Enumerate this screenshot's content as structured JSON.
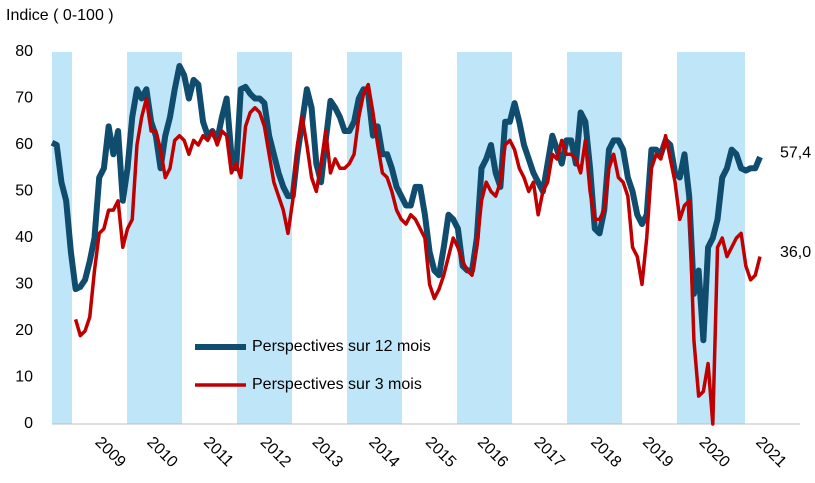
{
  "chart_data": {
    "type": "line",
    "y_axis_label": "Indice ( 0-100 )",
    "categories": [
      null,
      null,
      null,
      null,
      null,
      null,
      null,
      null,
      null,
      null,
      null,
      null,
      null,
      "2009",
      null,
      null,
      null,
      null,
      null,
      null,
      null,
      null,
      null,
      null,
      "2010",
      null,
      null,
      null,
      null,
      null,
      null,
      null,
      null,
      null,
      null,
      null,
      "2011",
      null,
      null,
      null,
      null,
      null,
      null,
      null,
      null,
      null,
      null,
      null,
      "2012",
      null,
      null,
      null,
      null,
      null,
      null,
      null,
      null,
      null,
      null,
      "2013",
      null,
      null,
      null,
      null,
      null,
      null,
      null,
      null,
      null,
      null,
      null,
      "2014",
      null,
      null,
      null,
      null,
      null,
      null,
      null,
      null,
      null,
      null,
      null,
      "2015",
      null,
      null,
      null,
      null,
      null,
      null,
      null,
      null,
      null,
      null,
      "2016",
      null,
      null,
      null,
      null,
      null,
      null,
      null,
      null,
      null,
      null,
      null,
      "2017",
      null,
      null,
      null,
      null,
      null,
      null,
      null,
      null,
      null,
      null,
      null,
      "2018",
      null,
      null,
      null,
      null,
      null,
      null,
      null,
      null,
      null,
      null,
      "2019",
      null,
      null,
      null,
      null,
      null,
      null,
      null,
      null,
      null,
      null,
      null,
      "2020",
      null,
      null,
      null,
      null,
      null,
      null,
      null,
      null,
      null,
      null,
      null,
      "2021"
    ],
    "series": [
      {
        "name": "Perspectives sur 12 mois",
        "color": "#0f4c6e",
        "width": 6,
        "values": [
          60.5,
          60,
          52,
          48,
          37,
          29,
          29.5,
          31,
          35,
          40,
          53,
          55,
          64,
          58,
          63,
          48,
          55,
          66,
          72,
          70,
          72,
          65,
          62,
          55,
          62,
          66,
          72,
          77,
          75,
          70,
          74,
          73,
          65,
          62,
          63,
          61,
          66,
          70,
          58,
          55,
          72,
          72.5,
          71,
          70,
          70,
          69,
          62,
          58,
          54,
          51,
          49,
          49,
          58,
          65,
          72,
          68,
          56,
          52,
          61,
          69.5,
          68,
          66,
          63,
          63,
          65,
          70,
          72,
          71,
          62,
          64,
          58,
          58,
          55,
          51,
          49,
          47,
          47,
          51,
          51,
          45,
          37,
          33,
          32,
          38,
          45,
          44,
          42,
          34,
          33,
          33,
          40,
          55,
          57,
          60,
          54,
          51,
          65,
          65,
          69,
          65,
          60,
          57,
          54,
          52,
          50,
          56,
          62,
          59,
          56,
          61,
          61,
          56,
          67,
          65,
          55,
          42,
          41,
          46,
          59,
          61,
          61,
          59,
          53,
          50,
          45,
          43,
          45,
          59,
          59,
          58,
          61,
          60,
          54,
          53,
          58,
          49,
          28,
          33,
          18,
          38,
          40,
          44,
          53,
          55,
          59,
          58,
          55,
          54.5,
          55,
          55,
          57.4,
          null,
          null,
          null
        ],
        "value_labels": [
          null,
          null,
          null,
          null,
          null,
          null,
          null,
          null,
          null,
          null,
          null,
          null,
          null,
          null,
          null,
          null,
          null,
          null,
          null,
          null,
          null,
          null,
          null,
          null,
          null,
          null,
          null,
          null,
          null,
          null,
          null,
          null,
          null,
          null,
          null,
          null,
          null,
          null,
          null,
          null,
          null,
          null,
          null,
          null,
          null,
          null,
          null,
          null,
          null,
          null,
          null,
          null,
          null,
          null,
          null,
          null,
          null,
          null,
          null,
          null,
          null,
          null,
          null,
          null,
          null,
          null,
          null,
          null,
          null,
          null,
          null,
          null,
          null,
          null,
          null,
          null,
          null,
          null,
          null,
          null,
          null,
          null,
          null,
          null,
          null,
          null,
          null,
          null,
          null,
          null,
          null,
          null,
          null,
          null,
          null,
          null,
          null,
          null,
          null,
          null,
          null,
          null,
          null,
          null,
          null,
          null,
          null,
          null,
          null,
          null,
          null,
          null,
          null,
          null,
          null,
          null,
          null,
          null,
          null,
          null,
          null,
          null,
          null,
          null,
          null,
          null,
          null,
          null,
          null,
          null,
          null,
          null,
          null,
          null,
          null,
          null,
          null,
          null,
          null,
          null,
          null,
          null,
          null,
          null,
          null,
          null,
          null,
          null,
          null,
          null,
          "57,4",
          null,
          null,
          null
        ]
      },
      {
        "name": "Perspectives sur 3 mois",
        "color": "#c00000",
        "width": 3.5,
        "values": [
          null,
          null,
          null,
          null,
          null,
          22.5,
          19,
          20,
          23,
          33,
          41,
          42,
          46,
          46,
          48,
          38,
          42,
          44,
          60,
          66,
          70,
          63,
          63,
          59,
          53,
          55,
          61,
          62,
          61,
          58,
          61,
          60,
          62,
          61,
          63,
          60,
          63,
          62,
          54,
          56,
          53,
          64,
          67,
          68,
          67,
          64,
          58,
          52,
          49,
          46,
          41,
          48,
          60,
          66,
          60,
          53,
          50,
          56,
          63,
          54,
          57,
          55,
          55,
          56,
          58,
          66,
          71,
          73,
          67,
          60,
          54,
          53,
          50,
          46,
          44,
          43,
          45,
          44,
          42,
          40,
          30,
          27,
          29,
          32,
          36,
          40,
          38,
          35,
          33,
          32,
          38,
          48,
          52,
          50,
          49,
          52,
          60,
          61,
          59,
          55,
          53,
          50,
          52,
          45,
          50,
          52,
          58,
          57,
          61,
          58,
          58,
          57,
          54,
          61,
          50,
          44,
          44,
          46,
          55,
          58,
          53,
          52,
          49,
          38,
          36,
          30,
          40,
          55,
          58,
          57,
          62,
          57,
          52,
          44,
          47,
          48,
          18,
          6,
          7,
          13,
          0,
          38,
          40,
          36,
          38,
          40,
          41,
          34,
          31,
          32,
          36,
          null,
          null,
          null
        ],
        "value_labels": [
          null,
          null,
          null,
          null,
          null,
          null,
          null,
          null,
          null,
          null,
          null,
          null,
          null,
          null,
          null,
          null,
          null,
          null,
          null,
          null,
          null,
          null,
          null,
          null,
          null,
          null,
          null,
          null,
          null,
          null,
          null,
          null,
          null,
          null,
          null,
          null,
          null,
          null,
          null,
          null,
          null,
          null,
          null,
          null,
          null,
          null,
          null,
          null,
          null,
          null,
          null,
          null,
          null,
          null,
          null,
          null,
          null,
          null,
          null,
          null,
          null,
          null,
          null,
          null,
          null,
          null,
          null,
          null,
          null,
          null,
          null,
          null,
          null,
          null,
          null,
          null,
          null,
          null,
          null,
          null,
          null,
          null,
          null,
          null,
          null,
          null,
          null,
          null,
          null,
          null,
          null,
          null,
          null,
          null,
          null,
          null,
          null,
          null,
          null,
          null,
          null,
          null,
          null,
          null,
          null,
          null,
          null,
          null,
          null,
          null,
          null,
          null,
          null,
          null,
          null,
          null,
          null,
          null,
          null,
          null,
          null,
          null,
          null,
          null,
          null,
          null,
          null,
          null,
          null,
          null,
          null,
          null,
          null,
          null,
          null,
          null,
          null,
          null,
          null,
          null,
          null,
          null,
          null,
          null,
          null,
          null,
          null,
          null,
          null,
          null,
          "36,0",
          null,
          null,
          null
        ]
      }
    ],
    "ylim": [
      0,
      80
    ],
    "yticks": [
      0,
      10,
      20,
      30,
      40,
      50,
      60,
      70,
      80
    ],
    "grid": false,
    "legend": "bottom"
  }
}
